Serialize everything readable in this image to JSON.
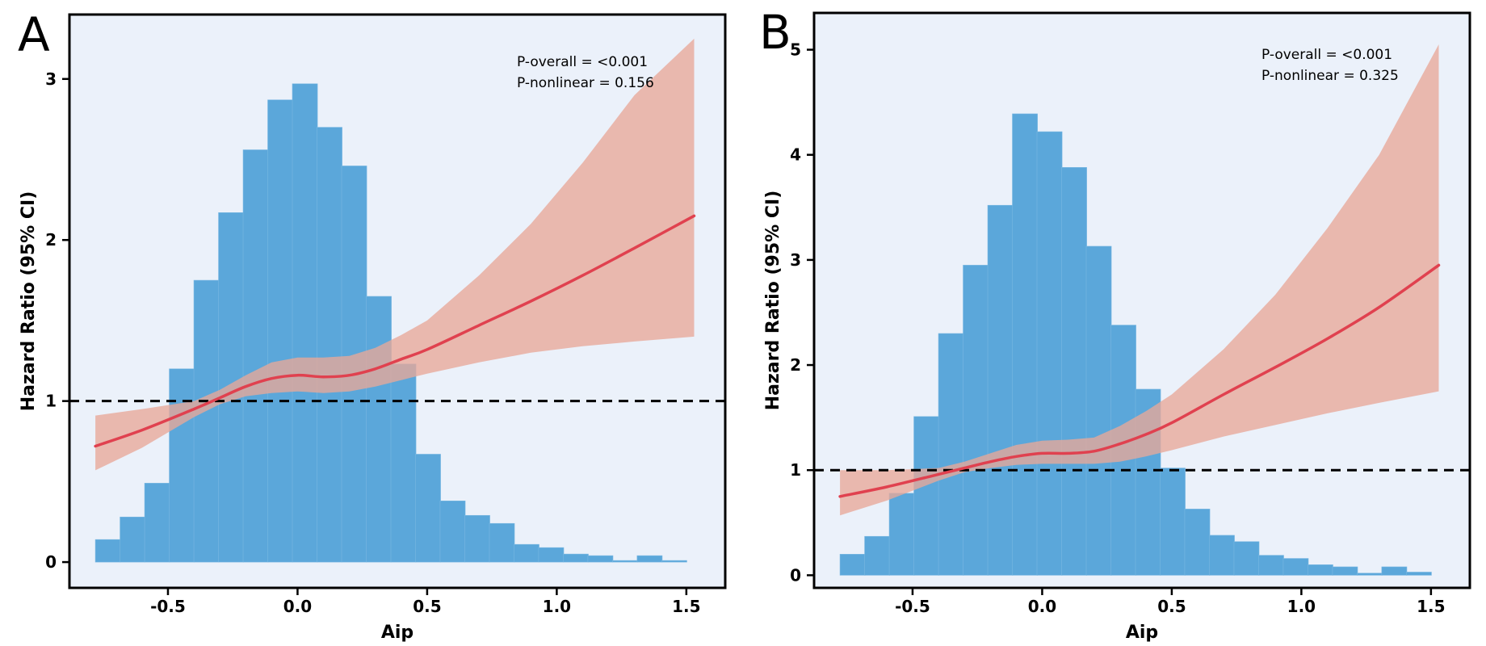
{
  "chart_data": [
    {
      "type": "bar",
      "panel_label": "A",
      "xlabel": "Aip",
      "ylabel": "Hazard Ratio (95% CI)",
      "xlim": [
        -0.88,
        1.65
      ],
      "x_ticks": [
        "-0.5",
        "0.0",
        "0.5",
        "1.0",
        "1.5"
      ],
      "x_tick_values": [
        -0.5,
        0.0,
        0.5,
        1.0,
        1.5
      ],
      "y_ticks": [
        "0",
        "1",
        "2",
        "3"
      ],
      "y_tick_values": [
        0,
        1,
        2,
        3
      ],
      "y_axis_range": [
        -0.16,
        3.4
      ],
      "annotations": [
        "P-overall = <0.001",
        "P-nonlinear = 0.156"
      ],
      "reference_line": 1,
      "colors": {
        "background": "#EBF1FA",
        "histogram": "#5BA7DA",
        "ci_band": "#E8A898",
        "curve": "#E0414F",
        "reference": "#000000"
      },
      "histogram": {
        "bin_edges": [
          -0.78,
          -0.685,
          -0.59,
          -0.495,
          -0.4,
          -0.305,
          -0.21,
          -0.115,
          -0.02,
          0.075,
          0.17,
          0.265,
          0.36,
          0.455,
          0.55,
          0.645,
          0.74,
          0.835,
          0.93,
          1.025,
          1.12,
          1.215,
          1.31,
          1.405,
          1.5
        ],
        "heights": [
          0.14,
          0.28,
          0.49,
          1.2,
          1.75,
          2.17,
          2.56,
          2.87,
          2.97,
          2.7,
          2.46,
          1.65,
          1.23,
          0.67,
          0.38,
          0.29,
          0.24,
          0.11,
          0.09,
          0.05,
          0.04,
          0.01,
          0.04,
          0.01
        ]
      },
      "curve": {
        "x": [
          -0.78,
          -0.6,
          -0.4,
          -0.3,
          -0.2,
          -0.1,
          0.0,
          0.1,
          0.2,
          0.3,
          0.4,
          0.5,
          0.7,
          0.9,
          1.1,
          1.3,
          1.53
        ],
        "hr": [
          0.72,
          0.82,
          0.95,
          1.02,
          1.09,
          1.14,
          1.16,
          1.15,
          1.16,
          1.2,
          1.26,
          1.32,
          1.47,
          1.62,
          1.78,
          1.95,
          2.15
        ],
        "lower": [
          0.57,
          0.71,
          0.9,
          0.98,
          1.03,
          1.05,
          1.06,
          1.05,
          1.06,
          1.09,
          1.13,
          1.17,
          1.24,
          1.3,
          1.34,
          1.37,
          1.4
        ],
        "upper": [
          0.91,
          0.95,
          1.0,
          1.07,
          1.16,
          1.24,
          1.27,
          1.27,
          1.28,
          1.33,
          1.41,
          1.5,
          1.78,
          2.1,
          2.48,
          2.9,
          3.25
        ]
      }
    },
    {
      "type": "bar",
      "panel_label": "B",
      "xlabel": "Aip",
      "ylabel": "Hazard Ratio (95% CI)",
      "xlim": [
        -0.88,
        1.65
      ],
      "x_ticks": [
        "-0.5",
        "0.0",
        "0.5",
        "1.0",
        "1.5"
      ],
      "x_tick_values": [
        -0.5,
        0.0,
        0.5,
        1.0,
        1.5
      ],
      "y_ticks": [
        "0",
        "1",
        "2",
        "3",
        "4",
        "5"
      ],
      "y_tick_values": [
        0,
        1,
        2,
        3,
        4,
        5
      ],
      "y_axis_range": [
        -0.12,
        5.35
      ],
      "annotations": [
        "P-overall = <0.001",
        "P-nonlinear = 0.325"
      ],
      "reference_line": 1,
      "colors": {
        "background": "#EBF1FA",
        "histogram": "#5BA7DA",
        "ci_band": "#E8A898",
        "curve": "#E0414F",
        "reference": "#000000"
      },
      "histogram": {
        "bin_edges": [
          -0.78,
          -0.685,
          -0.59,
          -0.495,
          -0.4,
          -0.305,
          -0.21,
          -0.115,
          -0.02,
          0.075,
          0.17,
          0.265,
          0.36,
          0.455,
          0.55,
          0.645,
          0.74,
          0.835,
          0.93,
          1.025,
          1.12,
          1.215,
          1.31,
          1.405,
          1.5
        ],
        "heights": [
          0.2,
          0.37,
          0.78,
          1.51,
          2.3,
          2.95,
          3.52,
          4.39,
          4.22,
          3.88,
          3.13,
          2.38,
          1.77,
          1.02,
          0.63,
          0.38,
          0.32,
          0.19,
          0.16,
          0.1,
          0.08,
          0.02,
          0.08,
          0.03
        ]
      },
      "curve": {
        "x": [
          -0.78,
          -0.6,
          -0.4,
          -0.3,
          -0.2,
          -0.1,
          0.0,
          0.1,
          0.2,
          0.3,
          0.4,
          0.5,
          0.7,
          0.9,
          1.1,
          1.3,
          1.53
        ],
        "hr": [
          0.75,
          0.84,
          0.96,
          1.02,
          1.08,
          1.13,
          1.16,
          1.16,
          1.18,
          1.25,
          1.34,
          1.45,
          1.72,
          1.98,
          2.25,
          2.55,
          2.95
        ],
        "lower": [
          0.57,
          0.71,
          0.9,
          0.98,
          1.02,
          1.05,
          1.06,
          1.06,
          1.06,
          1.08,
          1.13,
          1.19,
          1.32,
          1.43,
          1.54,
          1.64,
          1.75
        ],
        "upper": [
          1.0,
          1.0,
          1.02,
          1.08,
          1.16,
          1.24,
          1.28,
          1.29,
          1.31,
          1.42,
          1.56,
          1.72,
          2.15,
          2.67,
          3.3,
          4.0,
          5.05
        ]
      }
    }
  ]
}
